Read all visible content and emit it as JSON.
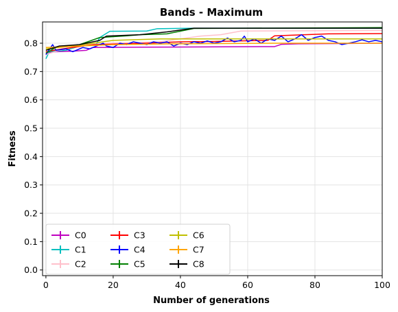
{
  "chart_data": {
    "type": "line",
    "title": "Bands - Maximum",
    "xlabel": "Number of generations",
    "ylabel": "Fitness",
    "xlim": [
      -1,
      100
    ],
    "ylim": [
      -0.02,
      0.875
    ],
    "xticks": [
      0,
      20,
      40,
      60,
      80,
      100
    ],
    "yticks": [
      0.0,
      0.1,
      0.2,
      0.3,
      0.4,
      0.5,
      0.6,
      0.7,
      0.8
    ],
    "xtick_labels": [
      "0",
      "20",
      "40",
      "60",
      "80",
      "100"
    ],
    "ytick_labels": [
      "0.0",
      "0.1",
      "0.2",
      "0.3",
      "0.4",
      "0.5",
      "0.6",
      "0.7",
      "0.8"
    ],
    "grid": true,
    "legend_position": "lower-left",
    "legend_columns": 3,
    "series": [
      {
        "name": "C0",
        "color": "#bf00bf",
        "points": [
          [
            0,
            0.765
          ],
          [
            3,
            0.77
          ],
          [
            8,
            0.772
          ],
          [
            12,
            0.775
          ],
          [
            14,
            0.785
          ],
          [
            30,
            0.786
          ],
          [
            68,
            0.788
          ],
          [
            70,
            0.796
          ],
          [
            75,
            0.798
          ],
          [
            100,
            0.8
          ]
        ]
      },
      {
        "name": "C1",
        "color": "#00bfbf",
        "points": [
          [
            0,
            0.745
          ],
          [
            1,
            0.77
          ],
          [
            6,
            0.775
          ],
          [
            10,
            0.79
          ],
          [
            15,
            0.795
          ],
          [
            16,
            0.82
          ],
          [
            19,
            0.842
          ],
          [
            30,
            0.843
          ],
          [
            33,
            0.851
          ],
          [
            44,
            0.853
          ],
          [
            100,
            0.853
          ]
        ]
      },
      {
        "name": "C2",
        "color": "#ffc0cb",
        "points": [
          [
            0,
            0.76
          ],
          [
            4,
            0.775
          ],
          [
            10,
            0.79
          ],
          [
            18,
            0.8
          ],
          [
            34,
            0.805
          ],
          [
            38,
            0.812
          ],
          [
            46,
            0.825
          ],
          [
            52,
            0.83
          ],
          [
            58,
            0.843
          ],
          [
            100,
            0.845
          ]
        ]
      },
      {
        "name": "C3",
        "color": "#ff0000",
        "points": [
          [
            0,
            0.77
          ],
          [
            5,
            0.78
          ],
          [
            14,
            0.795
          ],
          [
            30,
            0.8
          ],
          [
            40,
            0.805
          ],
          [
            50,
            0.806
          ],
          [
            66,
            0.81
          ],
          [
            68,
            0.826
          ],
          [
            84,
            0.833
          ],
          [
            100,
            0.834
          ]
        ]
      },
      {
        "name": "C4",
        "color": "#0000ff",
        "points": [
          [
            0,
            0.76
          ],
          [
            2,
            0.795
          ],
          [
            3,
            0.775
          ],
          [
            6,
            0.78
          ],
          [
            8,
            0.77
          ],
          [
            11,
            0.785
          ],
          [
            13,
            0.78
          ],
          [
            15,
            0.79
          ],
          [
            17,
            0.8
          ],
          [
            18,
            0.79
          ],
          [
            20,
            0.785
          ],
          [
            22,
            0.8
          ],
          [
            24,
            0.795
          ],
          [
            26,
            0.805
          ],
          [
            28,
            0.8
          ],
          [
            30,
            0.795
          ],
          [
            32,
            0.805
          ],
          [
            34,
            0.8
          ],
          [
            36,
            0.805
          ],
          [
            38,
            0.79
          ],
          [
            40,
            0.8
          ],
          [
            42,
            0.795
          ],
          [
            44,
            0.805
          ],
          [
            46,
            0.8
          ],
          [
            48,
            0.808
          ],
          [
            50,
            0.8
          ],
          [
            52,
            0.805
          ],
          [
            54,
            0.818
          ],
          [
            56,
            0.805
          ],
          [
            58,
            0.81
          ],
          [
            59,
            0.825
          ],
          [
            60,
            0.805
          ],
          [
            62,
            0.815
          ],
          [
            64,
            0.8
          ],
          [
            66,
            0.815
          ],
          [
            68,
            0.81
          ],
          [
            70,
            0.825
          ],
          [
            72,
            0.805
          ],
          [
            74,
            0.815
          ],
          [
            76,
            0.83
          ],
          [
            78,
            0.81
          ],
          [
            80,
            0.82
          ],
          [
            82,
            0.825
          ],
          [
            84,
            0.81
          ],
          [
            86,
            0.805
          ],
          [
            88,
            0.795
          ],
          [
            90,
            0.8
          ],
          [
            92,
            0.805
          ],
          [
            94,
            0.812
          ],
          [
            96,
            0.805
          ],
          [
            98,
            0.81
          ],
          [
            100,
            0.805
          ]
        ]
      },
      {
        "name": "C5",
        "color": "#008000",
        "points": [
          [
            0,
            0.765
          ],
          [
            3,
            0.785
          ],
          [
            10,
            0.795
          ],
          [
            16,
            0.82
          ],
          [
            24,
            0.826
          ],
          [
            28,
            0.83
          ],
          [
            36,
            0.833
          ],
          [
            44,
            0.852
          ],
          [
            100,
            0.855
          ]
        ]
      },
      {
        "name": "C6",
        "color": "#bfbf00",
        "points": [
          [
            0,
            0.78
          ],
          [
            8,
            0.79
          ],
          [
            14,
            0.8
          ],
          [
            20,
            0.81
          ],
          [
            34,
            0.815
          ],
          [
            100,
            0.815
          ]
        ]
      },
      {
        "name": "C7",
        "color": "#ffa500",
        "points": [
          [
            0,
            0.785
          ],
          [
            10,
            0.79
          ],
          [
            20,
            0.795
          ],
          [
            40,
            0.798
          ],
          [
            70,
            0.8
          ],
          [
            100,
            0.8
          ]
        ]
      },
      {
        "name": "C8",
        "color": "#000000",
        "points": [
          [
            0,
            0.775
          ],
          [
            4,
            0.79
          ],
          [
            10,
            0.795
          ],
          [
            16,
            0.81
          ],
          [
            18,
            0.825
          ],
          [
            28,
            0.83
          ],
          [
            36,
            0.84
          ],
          [
            44,
            0.853
          ],
          [
            100,
            0.853
          ]
        ]
      }
    ]
  }
}
